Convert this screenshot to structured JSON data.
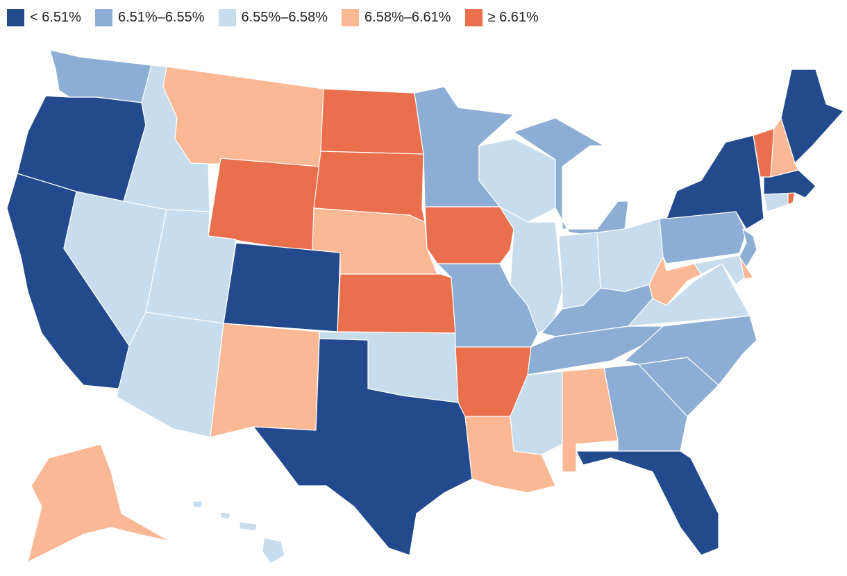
{
  "legend": {
    "items": [
      {
        "label": "< 6.51%",
        "color": "#234a8c"
      },
      {
        "label": "6.51%–6.55%",
        "color": "#8daed4"
      },
      {
        "label": "6.55%–6.58%",
        "color": "#c7dcec"
      },
      {
        "label": "6.58%–6.61%",
        "color": "#fbb895"
      },
      {
        "label": "≥ 6.61%",
        "color": "#ea6f4c"
      }
    ]
  },
  "states": {
    "WA": 1,
    "OR": 0,
    "CA": 0,
    "ID": 2,
    "NV": 2,
    "MT": 3,
    "WY": 4,
    "UT": 2,
    "AZ": 2,
    "CO": 0,
    "NM": 3,
    "ND": 4,
    "SD": 4,
    "NE": 3,
    "KS": 4,
    "OK": 2,
    "TX": 0,
    "MN": 1,
    "IA": 4,
    "MO": 1,
    "AR": 4,
    "LA": 3,
    "WI": 2,
    "IL": 2,
    "MI": 1,
    "IN": 2,
    "OH": 2,
    "KY": 1,
    "TN": 1,
    "MS": 2,
    "AL": 3,
    "GA": 1,
    "FL": 0,
    "SC": 1,
    "NC": 1,
    "VA": 2,
    "WV": 3,
    "PA": 1,
    "NY": 0,
    "ME": 0,
    "VT": 4,
    "NH": 3,
    "MA": 0,
    "CT": 2,
    "RI": 4,
    "NJ": 1,
    "DE": 3,
    "MD": 2,
    "AK": 3,
    "HI": 2
  }
}
